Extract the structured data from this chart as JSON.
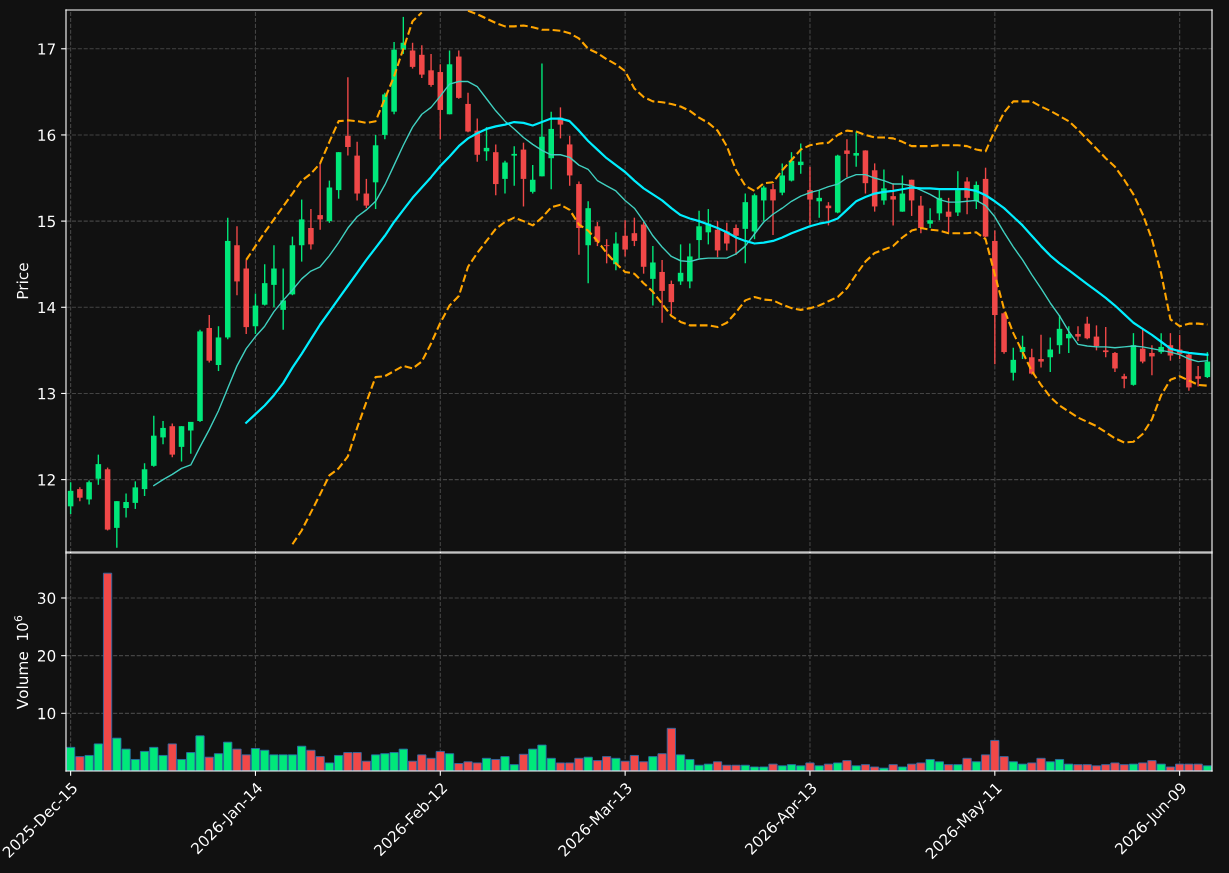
{
  "chart_data": [
    {
      "type": "candlestick",
      "ylabel": "Price",
      "ylim": [
        11.16,
        17.45
      ],
      "yticks": [
        12,
        13,
        14,
        15,
        16,
        17
      ],
      "grid": true,
      "tick_labels": "y",
      "categories": [
        null,
        null,
        null,
        null,
        null,
        null,
        null,
        null,
        null,
        null,
        null,
        null,
        null,
        null,
        null,
        null,
        null,
        null,
        null,
        null,
        null,
        null,
        null,
        null,
        null,
        null,
        null,
        null,
        null,
        null,
        null,
        null,
        null,
        null,
        null,
        null,
        null,
        null,
        null,
        null,
        null,
        null,
        null,
        null,
        null,
        null,
        null,
        null,
        null,
        null,
        null,
        null,
        null,
        null,
        null,
        null,
        null,
        null,
        null,
        null,
        null,
        null,
        null,
        null,
        null,
        null,
        null,
        null,
        null,
        null,
        null,
        null,
        null,
        null,
        null,
        null,
        null,
        null,
        null,
        null,
        null,
        null,
        null,
        null,
        null,
        null,
        null,
        null,
        null,
        null,
        null,
        null,
        null,
        null,
        null,
        null,
        null,
        null,
        null,
        null,
        null,
        null,
        null,
        null,
        null,
        null,
        null,
        null,
        null,
        null,
        null,
        null,
        null,
        null,
        null,
        null,
        null,
        null,
        null,
        null,
        null,
        null,
        null,
        null
      ],
      "ohlc": [
        [
          11.69,
          11.97,
          11.6,
          11.87
        ],
        [
          11.89,
          11.91,
          11.75,
          11.79
        ],
        [
          11.77,
          11.99,
          11.71,
          11.97
        ],
        [
          12.01,
          12.29,
          11.94,
          12.18
        ],
        [
          12.12,
          12.14,
          11.41,
          11.42
        ],
        [
          11.44,
          11.75,
          11.21,
          11.75
        ],
        [
          11.67,
          11.84,
          11.56,
          11.74
        ],
        [
          11.73,
          11.98,
          11.66,
          11.91
        ],
        [
          11.89,
          12.19,
          11.81,
          12.12
        ],
        [
          12.16,
          12.74,
          12.15,
          12.51
        ],
        [
          12.49,
          12.68,
          12.41,
          12.6
        ],
        [
          12.62,
          12.65,
          12.26,
          12.29
        ],
        [
          12.38,
          12.62,
          12.21,
          12.62
        ],
        [
          12.57,
          12.67,
          12.3,
          12.67
        ],
        [
          12.68,
          13.74,
          12.67,
          13.72
        ],
        [
          13.76,
          13.91,
          13.36,
          13.38
        ],
        [
          13.33,
          13.78,
          13.26,
          13.65
        ],
        [
          13.65,
          15.04,
          13.63,
          14.77
        ],
        [
          14.72,
          14.94,
          14.14,
          14.3
        ],
        [
          14.45,
          14.55,
          13.69,
          13.77
        ],
        [
          13.78,
          14.16,
          13.69,
          14.02
        ],
        [
          14.03,
          14.5,
          14.02,
          14.28
        ],
        [
          14.26,
          14.72,
          14.0,
          14.45
        ],
        [
          13.97,
          14.45,
          13.74,
          14.08
        ],
        [
          14.15,
          14.82,
          14.14,
          14.72
        ],
        [
          14.72,
          15.25,
          14.53,
          15.02
        ],
        [
          14.92,
          15.14,
          14.67,
          14.73
        ],
        [
          15.07,
          15.67,
          14.9,
          15.02
        ],
        [
          15.0,
          15.47,
          14.98,
          15.39
        ],
        [
          15.36,
          15.8,
          15.26,
          15.8
        ],
        [
          15.99,
          16.67,
          15.76,
          15.86
        ],
        [
          15.76,
          15.92,
          15.24,
          15.32
        ],
        [
          15.32,
          15.49,
          15.15,
          15.18
        ],
        [
          15.45,
          16.0,
          15.14,
          15.88
        ],
        [
          16.0,
          16.49,
          15.95,
          16.47
        ],
        [
          16.27,
          17.08,
          16.24,
          16.99
        ],
        [
          16.99,
          17.37,
          16.94,
          17.07
        ],
        [
          16.98,
          17.07,
          16.77,
          16.79
        ],
        [
          16.93,
          17.04,
          16.66,
          16.7
        ],
        [
          16.75,
          16.94,
          16.56,
          16.58
        ],
        [
          16.73,
          16.82,
          15.95,
          16.29
        ],
        [
          16.24,
          16.98,
          16.24,
          16.82
        ],
        [
          16.91,
          16.98,
          16.42,
          16.43
        ],
        [
          16.36,
          16.49,
          16.03,
          16.04
        ],
        [
          16.05,
          16.19,
          15.69,
          15.77
        ],
        [
          15.81,
          16.09,
          15.7,
          15.85
        ],
        [
          15.8,
          15.89,
          15.3,
          15.43
        ],
        [
          15.49,
          15.7,
          15.32,
          15.68
        ],
        [
          15.76,
          15.87,
          15.41,
          15.78
        ],
        [
          15.83,
          15.91,
          15.17,
          15.49
        ],
        [
          15.34,
          15.65,
          15.32,
          15.48
        ],
        [
          15.52,
          16.83,
          15.52,
          15.98
        ],
        [
          15.73,
          16.27,
          15.37,
          16.07
        ],
        [
          16.2,
          16.32,
          15.96,
          16.12
        ],
        [
          15.89,
          15.99,
          15.41,
          15.53
        ],
        [
          15.43,
          15.46,
          14.61,
          14.92
        ],
        [
          14.72,
          15.23,
          14.28,
          15.15
        ],
        [
          14.94,
          14.99,
          14.71,
          14.76
        ],
        [
          14.72,
          14.79,
          14.51,
          14.71
        ],
        [
          14.5,
          14.87,
          14.43,
          14.74
        ],
        [
          14.83,
          15.01,
          14.59,
          14.67
        ],
        [
          14.86,
          15.04,
          14.71,
          14.77
        ],
        [
          14.96,
          14.99,
          14.39,
          14.47
        ],
        [
          14.33,
          14.71,
          14.02,
          14.52
        ],
        [
          14.41,
          14.55,
          13.82,
          14.19
        ],
        [
          14.27,
          14.31,
          13.92,
          14.06
        ],
        [
          14.3,
          14.73,
          14.26,
          14.4
        ],
        [
          14.3,
          14.74,
          14.22,
          14.59
        ],
        [
          14.78,
          15.12,
          14.57,
          14.94
        ],
        [
          14.87,
          15.14,
          14.73,
          14.97
        ],
        [
          14.9,
          15.0,
          14.58,
          14.66
        ],
        [
          14.88,
          14.98,
          14.66,
          14.74
        ],
        [
          14.92,
          14.96,
          14.61,
          14.83
        ],
        [
          14.91,
          15.32,
          14.51,
          15.22
        ],
        [
          14.88,
          15.32,
          14.79,
          15.3
        ],
        [
          15.24,
          15.41,
          15.0,
          15.39
        ],
        [
          15.37,
          15.43,
          14.84,
          15.24
        ],
        [
          15.33,
          15.67,
          15.3,
          15.53
        ],
        [
          15.47,
          15.8,
          15.46,
          15.7
        ],
        [
          15.65,
          15.9,
          15.55,
          15.69
        ],
        [
          15.36,
          15.63,
          14.96,
          15.25
        ],
        [
          15.23,
          15.36,
          15.04,
          15.27
        ],
        [
          15.18,
          15.22,
          14.95,
          15.15
        ],
        [
          15.1,
          15.77,
          15.09,
          15.76
        ],
        [
          15.82,
          15.95,
          15.51,
          15.78
        ],
        [
          15.76,
          16.04,
          15.63,
          15.79
        ],
        [
          15.82,
          15.82,
          15.32,
          15.44
        ],
        [
          15.59,
          15.67,
          15.11,
          15.17
        ],
        [
          15.24,
          15.6,
          15.19,
          15.38
        ],
        [
          15.29,
          15.44,
          14.95,
          15.25
        ],
        [
          15.11,
          15.53,
          15.11,
          15.32
        ],
        [
          15.48,
          15.48,
          15.06,
          15.24
        ],
        [
          15.18,
          15.29,
          14.86,
          14.92
        ],
        [
          14.97,
          15.15,
          14.92,
          15.01
        ],
        [
          15.09,
          15.36,
          15.01,
          15.27
        ],
        [
          15.11,
          15.27,
          14.87,
          15.05
        ],
        [
          15.1,
          15.58,
          15.06,
          15.36
        ],
        [
          15.46,
          15.51,
          15.08,
          15.27
        ],
        [
          15.23,
          15.46,
          15.14,
          15.42
        ],
        [
          15.49,
          15.62,
          14.81,
          14.82
        ],
        [
          14.77,
          14.89,
          13.34,
          13.91
        ],
        [
          13.93,
          13.94,
          13.46,
          13.48
        ],
        [
          13.24,
          13.53,
          13.15,
          13.39
        ],
        [
          13.48,
          13.67,
          13.4,
          13.54
        ],
        [
          13.42,
          13.52,
          13.22,
          13.23
        ],
        [
          13.4,
          13.68,
          13.3,
          13.37
        ],
        [
          13.42,
          13.65,
          13.25,
          13.51
        ],
        [
          13.56,
          13.91,
          13.46,
          13.75
        ],
        [
          13.64,
          13.78,
          13.47,
          13.69
        ],
        [
          13.69,
          13.78,
          13.61,
          13.66
        ],
        [
          13.81,
          13.89,
          13.63,
          13.64
        ],
        [
          13.66,
          13.79,
          13.5,
          13.55
        ],
        [
          13.5,
          13.77,
          13.42,
          13.48
        ],
        [
          13.47,
          13.48,
          13.25,
          13.29
        ],
        [
          13.2,
          13.23,
          13.06,
          13.17
        ],
        [
          13.1,
          13.7,
          13.09,
          13.56
        ],
        [
          13.52,
          13.75,
          13.35,
          13.37
        ],
        [
          13.47,
          13.56,
          13.21,
          13.43
        ],
        [
          13.48,
          13.7,
          13.46,
          13.54
        ],
        [
          13.56,
          13.7,
          13.38,
          13.44
        ],
        [
          13.51,
          13.68,
          13.4,
          13.46
        ],
        [
          13.45,
          13.46,
          13.03,
          13.07
        ],
        [
          13.2,
          13.32,
          13.08,
          13.17
        ],
        [
          13.19,
          13.48,
          13.18,
          13.37
        ]
      ],
      "colors": [
        "#00e87a",
        "#f04848",
        "#00e87a",
        "#00e87a",
        "#f04848",
        "#00e87a",
        "#00e87a",
        "#00e87a",
        "#00e87a",
        "#00e87a",
        "#00e87a",
        "#f04848",
        "#00e87a",
        "#00e87a",
        "#00e87a",
        "#f04848",
        "#00e87a",
        "#00e87a",
        "#f04848",
        "#f04848",
        "#00e87a",
        "#00e87a",
        "#00e87a",
        "#00e87a",
        "#00e87a",
        "#00e87a",
        "#f04848",
        "#f04848",
        "#00e87a",
        "#00e87a",
        "#f04848",
        "#f04848",
        "#f04848",
        "#00e87a",
        "#00e87a",
        "#00e87a",
        "#00e87a",
        "#f04848",
        "#f04848",
        "#f04848",
        "#f04848",
        "#00e87a",
        "#f04848",
        "#f04848",
        "#f04848",
        "#00e87a",
        "#f04848",
        "#00e87a",
        "#00e87a",
        "#f04848",
        "#00e87a",
        "#00e87a",
        "#00e87a",
        "#f04848",
        "#f04848",
        "#f04848",
        "#00e87a",
        "#f04848",
        "#f04848",
        "#00e87a",
        "#f04848",
        "#f04848",
        "#f04848",
        "#00e87a",
        "#f04848",
        "#f04848",
        "#00e87a",
        "#00e87a",
        "#00e87a",
        "#00e87a",
        "#f04848",
        "#f04848",
        "#f04848",
        "#00e87a",
        "#00e87a",
        "#00e87a",
        "#f04848",
        "#00e87a",
        "#00e87a",
        "#00e87a",
        "#f04848",
        "#00e87a",
        "#f04848",
        "#00e87a",
        "#f04848",
        "#00e87a",
        "#f04848",
        "#f04848",
        "#00e87a",
        "#f04848",
        "#00e87a",
        "#f04848",
        "#f04848",
        "#00e87a",
        "#00e87a",
        "#f04848",
        "#00e87a",
        "#f04848",
        "#00e87a",
        "#f04848",
        "#f04848",
        "#f04848",
        "#00e87a",
        "#00e87a",
        "#f04848",
        "#f04848",
        "#00e87a",
        "#00e87a",
        "#00e87a",
        "#f04848",
        "#f04848",
        "#f04848",
        "#f04848",
        "#f04848",
        "#f04848",
        "#00e87a",
        "#f04848",
        "#f04848",
        "#00e87a",
        "#f04848",
        "#f04848",
        "#f04848",
        "#f04848",
        "#00e87a"
      ],
      "series": [
        {
          "type": "line",
          "color": "#40d0c0",
          "line_style": "solid",
          "values": [
            null,
            null,
            null,
            null,
            null,
            null,
            null,
            null,
            null,
            11.93,
            12.0,
            12.06,
            12.13,
            12.17,
            12.38,
            12.58,
            12.8,
            13.06,
            13.32,
            13.52,
            13.66,
            13.78,
            13.95,
            14.08,
            14.2,
            14.33,
            14.42,
            14.47,
            14.6,
            14.75,
            14.92,
            15.05,
            15.13,
            15.23,
            15.42,
            15.65,
            15.88,
            16.09,
            16.24,
            16.32,
            16.45,
            16.59,
            16.62,
            16.62,
            16.56,
            16.42,
            16.28,
            16.16,
            16.07,
            15.97,
            15.89,
            15.82,
            15.77,
            15.77,
            15.74,
            15.65,
            15.6,
            15.47,
            15.41,
            15.35,
            15.24,
            15.15,
            15.0,
            14.83,
            14.7,
            14.59,
            14.54,
            14.53,
            14.56,
            14.57,
            14.57,
            14.57,
            14.62,
            14.71,
            14.85,
            14.99,
            15.08,
            15.15,
            15.23,
            15.29,
            15.33,
            15.36,
            15.4,
            15.43,
            15.5,
            15.54,
            15.54,
            15.5,
            15.47,
            15.43,
            15.43,
            15.41,
            15.36,
            15.31,
            15.25,
            15.22,
            15.22,
            15.23,
            15.24,
            15.18,
            15.05,
            14.87,
            14.7,
            14.55,
            14.38,
            14.22,
            14.05,
            13.9,
            13.72,
            13.57,
            13.55,
            13.54,
            13.54,
            13.53,
            13.54,
            13.55,
            13.54,
            13.52,
            13.5,
            13.48,
            13.45,
            13.4,
            13.37,
            13.38
          ]
        },
        {
          "type": "line",
          "color": "#00eeff",
          "line_style": "solid",
          "values": [
            null,
            null,
            null,
            null,
            null,
            null,
            null,
            null,
            null,
            null,
            null,
            null,
            null,
            null,
            null,
            null,
            null,
            null,
            null,
            12.66,
            12.76,
            12.86,
            12.98,
            13.12,
            13.3,
            13.46,
            13.63,
            13.8,
            13.95,
            14.1,
            14.25,
            14.4,
            14.55,
            14.69,
            14.83,
            14.99,
            15.13,
            15.27,
            15.39,
            15.51,
            15.64,
            15.75,
            15.87,
            15.96,
            16.02,
            16.07,
            16.1,
            16.12,
            16.15,
            16.14,
            16.11,
            16.15,
            16.19,
            16.19,
            16.16,
            16.05,
            15.93,
            15.83,
            15.73,
            15.65,
            15.57,
            15.47,
            15.38,
            15.31,
            15.24,
            15.15,
            15.07,
            15.03,
            15.0,
            14.96,
            14.92,
            14.87,
            14.81,
            14.77,
            14.74,
            14.75,
            14.77,
            14.81,
            14.86,
            14.9,
            14.94,
            14.97,
            14.99,
            15.03,
            15.13,
            15.23,
            15.28,
            15.32,
            15.34,
            15.35,
            15.37,
            15.39,
            15.38,
            15.38,
            15.37,
            15.37,
            15.37,
            15.37,
            15.35,
            15.3,
            15.23,
            15.15,
            15.05,
            14.95,
            14.83,
            14.71,
            14.6,
            14.51,
            14.43,
            14.35,
            14.27,
            14.19,
            14.11,
            14.02,
            13.92,
            13.82,
            13.75,
            13.68,
            13.6,
            13.52,
            13.49,
            13.47,
            13.46,
            13.45
          ]
        },
        {
          "type": "line",
          "color": "#ffa500",
          "line_style": "dashed",
          "values": [
            null,
            null,
            null,
            null,
            null,
            null,
            null,
            null,
            null,
            null,
            null,
            null,
            null,
            null,
            null,
            null,
            null,
            null,
            null,
            14.55,
            14.71,
            14.87,
            15.02,
            15.17,
            15.32,
            15.47,
            15.55,
            15.67,
            15.92,
            16.16,
            16.17,
            16.16,
            16.14,
            16.16,
            16.42,
            16.68,
            17.0,
            17.32,
            17.42,
            null,
            null,
            null,
            null,
            17.44,
            17.4,
            17.35,
            17.3,
            17.26,
            17.26,
            17.27,
            17.25,
            17.22,
            17.22,
            17.21,
            17.18,
            17.12,
            17.0,
            16.95,
            16.88,
            16.82,
            16.74,
            16.54,
            16.44,
            16.39,
            16.38,
            16.36,
            16.33,
            16.28,
            16.2,
            16.14,
            16.05,
            15.87,
            15.59,
            15.41,
            15.35,
            15.44,
            15.45,
            15.59,
            15.71,
            15.83,
            15.88,
            15.9,
            15.91,
            16.0,
            16.05,
            16.04,
            16.0,
            15.97,
            15.97,
            15.96,
            15.92,
            15.87,
            15.87,
            15.87,
            15.88,
            15.88,
            15.88,
            15.87,
            15.83,
            15.81,
            16.05,
            16.26,
            16.39,
            16.39,
            16.39,
            16.33,
            16.28,
            16.22,
            16.16,
            16.06,
            15.95,
            15.84,
            15.73,
            15.63,
            15.48,
            15.31,
            15.08,
            14.79,
            14.39,
            13.86,
            13.78,
            13.81,
            13.81,
            13.8
          ]
        },
        {
          "type": "line",
          "color": "#ffa500",
          "line_style": "dashed",
          "values": [
            null,
            null,
            null,
            null,
            null,
            null,
            null,
            null,
            null,
            null,
            null,
            null,
            null,
            null,
            null,
            null,
            null,
            null,
            null,
            null,
            null,
            null,
            null,
            null,
            11.25,
            11.41,
            11.62,
            11.83,
            12.05,
            12.13,
            12.27,
            12.6,
            12.9,
            13.19,
            13.2,
            13.26,
            13.32,
            13.29,
            13.37,
            13.58,
            13.82,
            14.02,
            14.13,
            14.47,
            14.63,
            14.77,
            14.91,
            14.99,
            15.04,
            15.0,
            14.95,
            15.04,
            15.16,
            15.19,
            15.13,
            14.96,
            14.89,
            14.77,
            14.63,
            14.51,
            14.41,
            14.39,
            14.28,
            14.18,
            14.04,
            13.9,
            13.83,
            13.79,
            13.79,
            13.79,
            13.77,
            13.82,
            13.94,
            14.08,
            14.12,
            14.09,
            14.08,
            14.03,
            13.99,
            13.97,
            13.99,
            14.02,
            14.07,
            14.12,
            14.22,
            14.38,
            14.53,
            14.63,
            14.67,
            14.71,
            14.81,
            14.89,
            14.92,
            14.9,
            14.89,
            14.86,
            14.86,
            14.86,
            14.87,
            14.79,
            14.38,
            13.98,
            13.7,
            13.48,
            13.26,
            13.1,
            12.96,
            12.86,
            12.79,
            12.72,
            12.67,
            12.62,
            12.55,
            12.48,
            12.43,
            12.44,
            12.53,
            12.7,
            12.98,
            13.16,
            13.2,
            13.15,
            13.1,
            13.09
          ]
        }
      ]
    },
    {
      "type": "bar",
      "ylabel": "Volume  10$^{6}$",
      "ylim": [
        0,
        37.8
      ],
      "yticks": [
        10,
        20,
        30
      ],
      "grid": true,
      "categories": [
        "2025-Dec-15",
        null,
        null,
        null,
        null,
        null,
        null,
        null,
        null,
        null,
        null,
        null,
        null,
        null,
        null,
        null,
        null,
        null,
        null,
        null,
        "2026-Jan-14",
        null,
        null,
        null,
        null,
        null,
        null,
        null,
        null,
        null,
        null,
        null,
        null,
        null,
        null,
        null,
        null,
        null,
        null,
        null,
        "2026-Feb-12",
        null,
        null,
        null,
        null,
        null,
        null,
        null,
        null,
        null,
        null,
        null,
        null,
        null,
        null,
        null,
        null,
        null,
        null,
        null,
        "2026-Mar-13",
        null,
        null,
        null,
        null,
        null,
        null,
        null,
        null,
        null,
        null,
        null,
        null,
        null,
        null,
        null,
        null,
        null,
        null,
        null,
        "2026-Apr-13",
        null,
        null,
        null,
        null,
        null,
        null,
        null,
        null,
        null,
        null,
        null,
        null,
        null,
        null,
        null,
        null,
        null,
        null,
        null,
        "2026-May-11",
        null,
        null,
        null,
        null,
        null,
        null,
        null,
        null,
        null,
        null,
        null,
        null,
        null,
        null,
        null,
        null,
        null,
        null,
        null,
        "2026-Jun-09",
        null,
        null,
        null
      ],
      "values": [
        4.1,
        2.5,
        2.7,
        4.7,
        34.3,
        5.7,
        3.8,
        2.0,
        3.4,
        4.1,
        2.7,
        4.7,
        2.0,
        3.2,
        6.1,
        2.4,
        3.0,
        5.0,
        3.8,
        2.8,
        3.9,
        3.6,
        2.8,
        2.8,
        2.8,
        4.3,
        3.6,
        2.5,
        1.4,
        2.7,
        3.2,
        3.2,
        1.7,
        2.8,
        3.0,
        3.2,
        3.8,
        1.7,
        2.8,
        2.2,
        3.4,
        3.0,
        1.3,
        1.6,
        1.4,
        2.2,
        2.0,
        2.5,
        1.1,
        2.9,
        3.8,
        4.5,
        2.2,
        1.4,
        1.4,
        2.2,
        2.4,
        1.8,
        2.5,
        2.2,
        1.7,
        2.7,
        1.6,
        2.5,
        3.0,
        7.4,
        2.8,
        2.0,
        1.0,
        1.2,
        1.6,
        1.0,
        1.0,
        1.0,
        0.7,
        0.7,
        1.2,
        0.9,
        1.1,
        0.9,
        1.4,
        0.9,
        1.2,
        1.4,
        1.8,
        0.9,
        1.1,
        0.7,
        0.5,
        1.1,
        0.7,
        1.2,
        1.4,
        2.0,
        1.6,
        1.1,
        1.1,
        2.2,
        1.6,
        2.8,
        5.3,
        2.5,
        1.6,
        1.2,
        1.4,
        2.2,
        1.6,
        2.0,
        1.2,
        1.1,
        1.1,
        0.9,
        1.1,
        1.4,
        1.1,
        1.2,
        1.4,
        1.8,
        1.2,
        0.7,
        1.2,
        1.2,
        1.2,
        0.9
      ],
      "colors": [
        "#00e87a",
        "#f04848",
        "#00e87a",
        "#00e87a",
        "#f04848",
        "#00e87a",
        "#00e87a",
        "#00e87a",
        "#00e87a",
        "#00e87a",
        "#00e87a",
        "#f04848",
        "#00e87a",
        "#00e87a",
        "#00e87a",
        "#f04848",
        "#00e87a",
        "#00e87a",
        "#f04848",
        "#f04848",
        "#00e87a",
        "#00e87a",
        "#00e87a",
        "#00e87a",
        "#00e87a",
        "#00e87a",
        "#f04848",
        "#f04848",
        "#00e87a",
        "#00e87a",
        "#f04848",
        "#f04848",
        "#f04848",
        "#00e87a",
        "#00e87a",
        "#00e87a",
        "#00e87a",
        "#f04848",
        "#f04848",
        "#f04848",
        "#f04848",
        "#00e87a",
        "#f04848",
        "#f04848",
        "#f04848",
        "#00e87a",
        "#f04848",
        "#00e87a",
        "#00e87a",
        "#f04848",
        "#00e87a",
        "#00e87a",
        "#00e87a",
        "#f04848",
        "#f04848",
        "#f04848",
        "#00e87a",
        "#f04848",
        "#f04848",
        "#00e87a",
        "#f04848",
        "#f04848",
        "#f04848",
        "#00e87a",
        "#f04848",
        "#f04848",
        "#00e87a",
        "#00e87a",
        "#00e87a",
        "#00e87a",
        "#f04848",
        "#f04848",
        "#f04848",
        "#00e87a",
        "#00e87a",
        "#00e87a",
        "#f04848",
        "#00e87a",
        "#00e87a",
        "#00e87a",
        "#f04848",
        "#00e87a",
        "#f04848",
        "#00e87a",
        "#f04848",
        "#00e87a",
        "#f04848",
        "#f04848",
        "#00e87a",
        "#f04848",
        "#00e87a",
        "#f04848",
        "#f04848",
        "#00e87a",
        "#00e87a",
        "#f04848",
        "#00e87a",
        "#f04848",
        "#00e87a",
        "#f04848",
        "#f04848",
        "#f04848",
        "#00e87a",
        "#00e87a",
        "#f04848",
        "#f04848",
        "#00e87a",
        "#00e87a",
        "#00e87a",
        "#f04848",
        "#f04848",
        "#f04848",
        "#f04848",
        "#f04848",
        "#f04848",
        "#00e87a",
        "#f04848",
        "#f04848",
        "#00e87a",
        "#f04848",
        "#f04848",
        "#f04848",
        "#f04848",
        "#00e87a"
      ]
    }
  ]
}
